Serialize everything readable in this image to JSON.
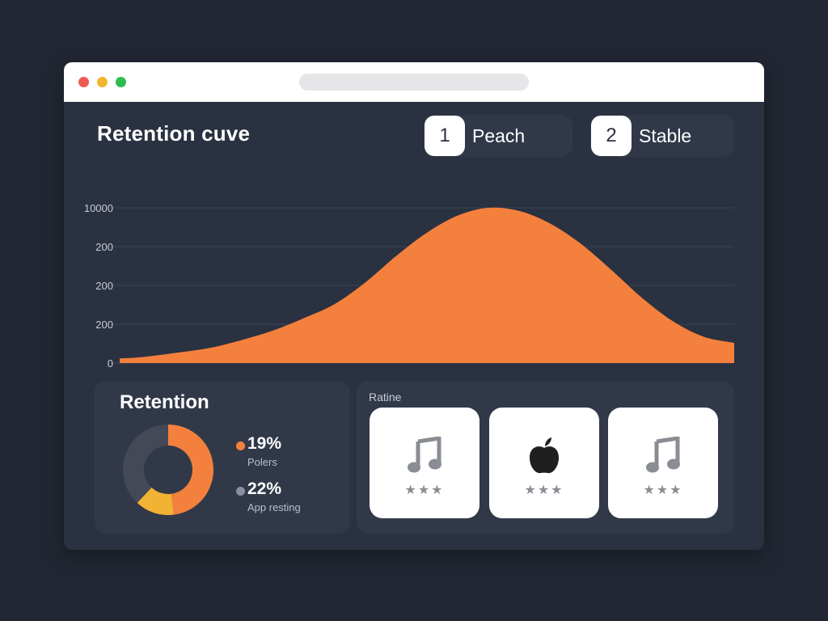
{
  "header": {
    "title": "Retention cuve",
    "legend": [
      {
        "number": "1",
        "label": "Peach"
      },
      {
        "number": "2",
        "label": "Stable"
      }
    ]
  },
  "chart_data": {
    "type": "area",
    "title": "Retention cuve",
    "y_tick_labels": [
      "10000",
      "200",
      "200",
      "200",
      "0"
    ],
    "grid": true,
    "color": "#f4803d",
    "x": [
      0,
      0.04,
      0.1,
      0.15,
      0.2,
      0.25,
      0.3,
      0.35,
      0.4,
      0.45,
      0.5,
      0.55,
      0.6,
      0.65,
      0.7,
      0.75,
      0.8,
      0.85,
      0.9,
      0.95,
      1.0
    ],
    "values": [
      0.03,
      0.04,
      0.07,
      0.1,
      0.15,
      0.21,
      0.29,
      0.38,
      0.52,
      0.69,
      0.84,
      0.95,
      1.0,
      0.98,
      0.9,
      0.77,
      0.6,
      0.42,
      0.27,
      0.17,
      0.13
    ]
  },
  "retention": {
    "title": "Retention",
    "donut": [
      {
        "fraction": 0.48,
        "color": "#f4803d"
      },
      {
        "fraction": 0.14,
        "color": "#f2b233"
      },
      {
        "fraction": 0.38,
        "color": "#434957"
      }
    ],
    "stats": [
      {
        "value": "19%",
        "label": "Polers",
        "color": "#f4803d"
      },
      {
        "value": "22%",
        "label": "App resting",
        "color": "#8a909c"
      }
    ]
  },
  "ratings": {
    "label": "Ratine",
    "tiles": [
      {
        "icon": "music-note-icon",
        "stars": "★★★"
      },
      {
        "icon": "apple-logo-icon",
        "stars": "★★★"
      },
      {
        "icon": "music-note-icon",
        "stars": "★★★"
      }
    ]
  }
}
